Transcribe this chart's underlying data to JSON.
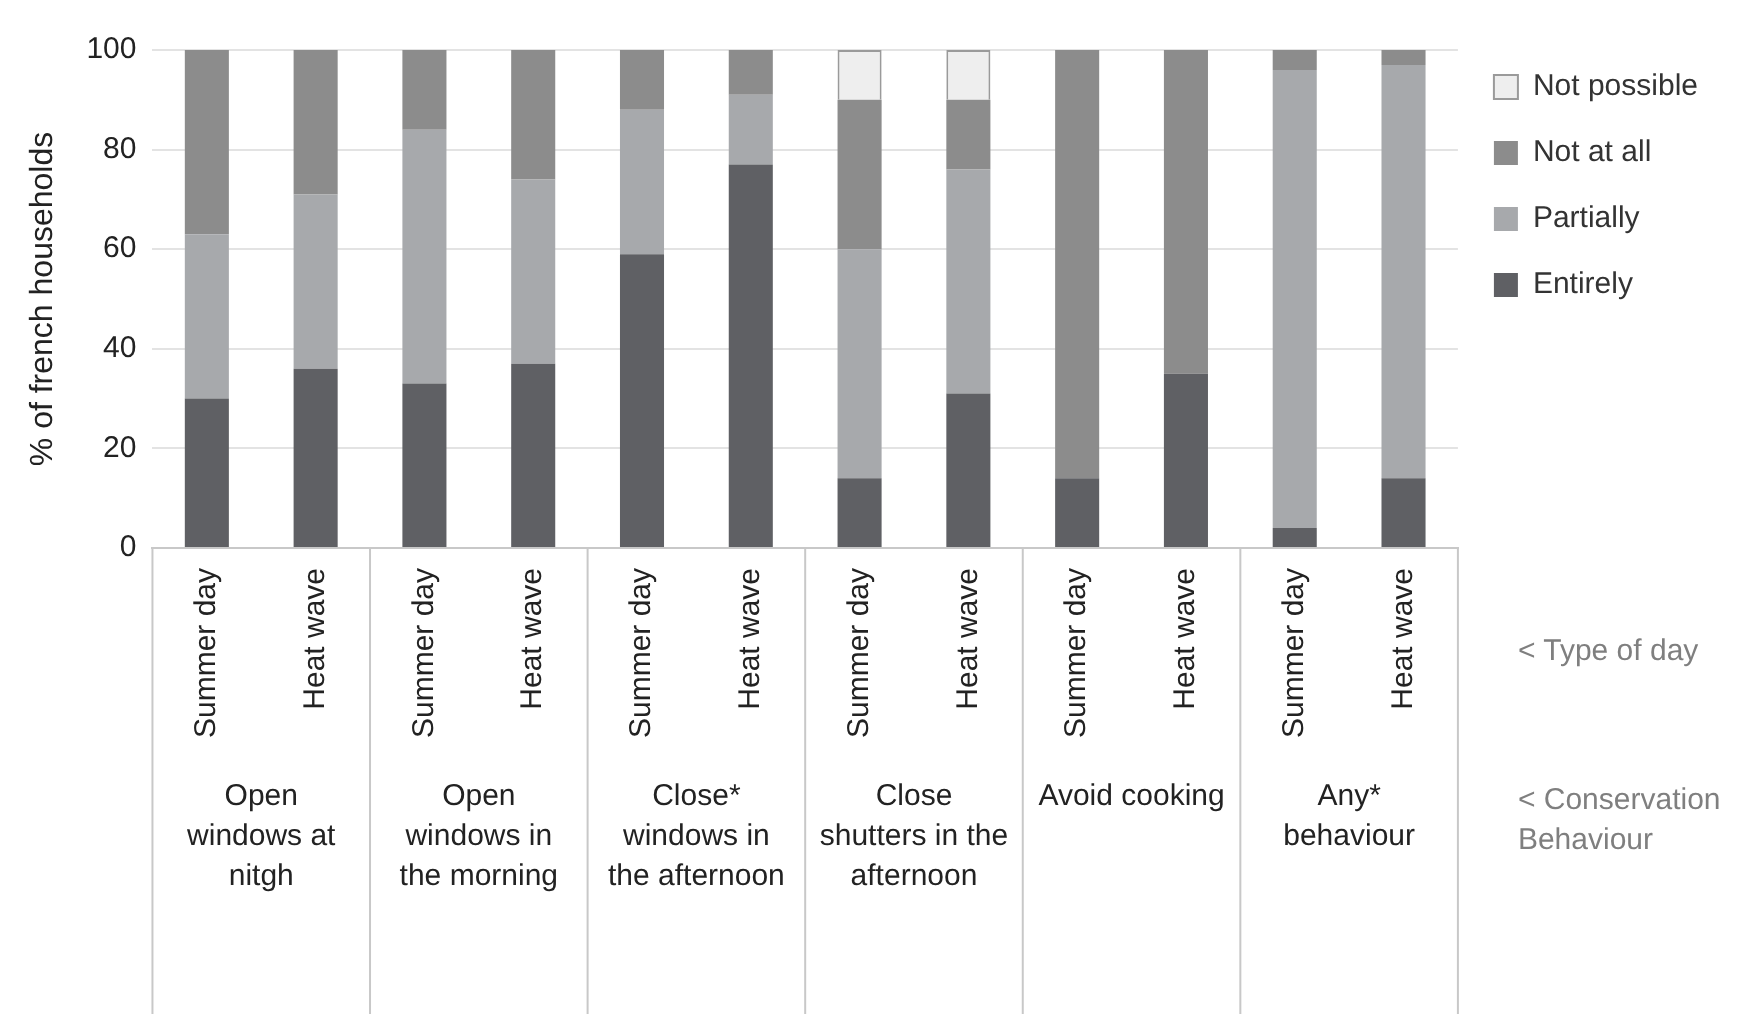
{
  "chart_data": {
    "type": "bar",
    "stacked": true,
    "ylabel": "% of french households",
    "categories": [
      "Summer day",
      "Heat wave",
      "Summer day",
      "Heat wave",
      "Summer day",
      "Heat wave",
      "Summer day",
      "Heat wave",
      "Summer day",
      "Heat wave",
      "Summer day",
      "Heat wave"
    ],
    "series": [
      {
        "name": "Entirely",
        "color": "#5f6064",
        "values": [
          30,
          36,
          33,
          37,
          59,
          77,
          14,
          31,
          14,
          35,
          4,
          14
        ]
      },
      {
        "name": "Partially",
        "color": "#a7a9ac",
        "values": [
          33,
          35,
          51,
          37,
          29,
          14,
          46,
          45,
          0,
          0,
          92,
          83
        ]
      },
      {
        "name": "Not at all",
        "color": "#8c8c8c",
        "values": [
          37,
          29,
          16,
          26,
          12,
          9,
          30,
          14,
          86,
          65,
          4,
          3
        ]
      },
      {
        "name": "Not possible",
        "color": "#eeeeee",
        "values": [
          0,
          0,
          0,
          0,
          0,
          0,
          10,
          10,
          0,
          0,
          0,
          0
        ]
      }
    ],
    "ylim": [
      0,
      100
    ],
    "yticks": [
      0,
      20,
      40,
      60,
      80,
      100
    ],
    "grid": "y",
    "legend": "right",
    "annotations": [
      "Open windows at nitgh",
      "Open windows in the morning",
      "Close* windows in the afternoon",
      "Close shutters in the afternoon",
      "Avoid cooking",
      "Any* behaviour",
      "< Type of day",
      "< Conservation Behaviour"
    ]
  }
}
